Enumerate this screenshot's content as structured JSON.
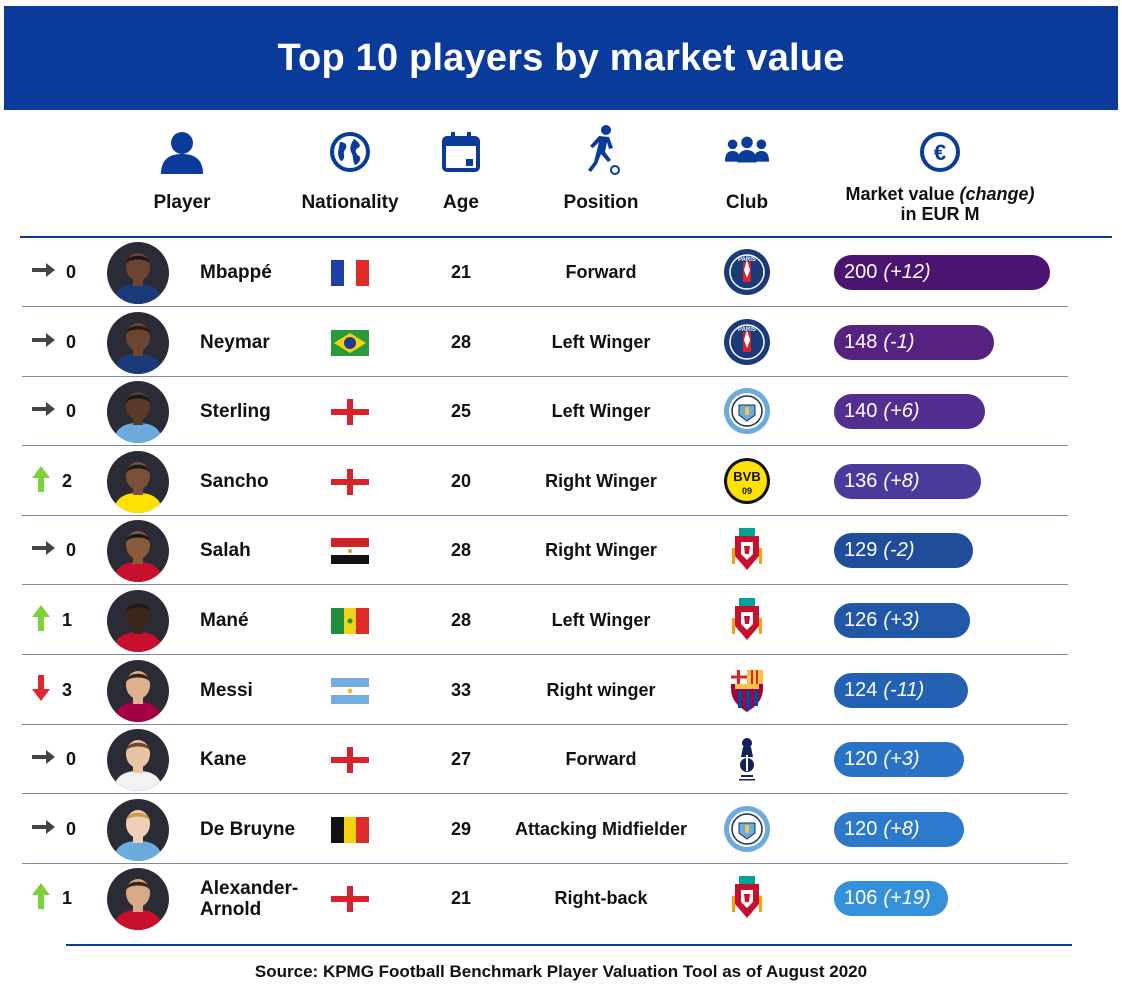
{
  "title": "Top 10 players by market value",
  "columns": {
    "player": "Player",
    "nationality": "Nationality",
    "age": "Age",
    "position": "Position",
    "club": "Club",
    "market_value_line1": "Market value",
    "market_value_change": "(change)",
    "market_value_line2": "in EUR M"
  },
  "icons": {
    "player": "person-icon",
    "nationality": "globe-icon",
    "age": "calendar-icon",
    "position": "running-player-icon",
    "club": "group-icon",
    "market_value": "euro-icon"
  },
  "rows": [
    {
      "trend": "same",
      "change": "0",
      "player": "Mbappé",
      "flag": "france",
      "age": "21",
      "position": "Forward",
      "club": "psg",
      "value": "200",
      "value_change": "(+12)",
      "bar_color": "#4a1470",
      "value_num": 200
    },
    {
      "trend": "same",
      "change": "0",
      "player": "Neymar",
      "flag": "brazil",
      "age": "28",
      "position": "Left Winger",
      "club": "psg",
      "value": "148",
      "value_change": "(-1)",
      "bar_color": "#55237f",
      "value_num": 148
    },
    {
      "trend": "same",
      "change": "0",
      "player": "Sterling",
      "flag": "england",
      "age": "25",
      "position": "Left Winger",
      "club": "man-city",
      "value": "140",
      "value_change": "(+6)",
      "bar_color": "#512e8f",
      "value_num": 140
    },
    {
      "trend": "up",
      "change": "2",
      "player": "Sancho",
      "flag": "england",
      "age": "20",
      "position": "Right Winger",
      "club": "bvb",
      "value": "136",
      "value_change": "(+8)",
      "bar_color": "#4a3a9c",
      "value_num": 136
    },
    {
      "trend": "same",
      "change": "0",
      "player": "Salah",
      "flag": "egypt",
      "age": "28",
      "position": "Right Winger",
      "club": "liverpool",
      "value": "129",
      "value_change": "(-2)",
      "bar_color": "#1f4d9a",
      "value_num": 129
    },
    {
      "trend": "up",
      "change": "1",
      "player": "Mané",
      "flag": "senegal",
      "age": "28",
      "position": "Left Winger",
      "club": "liverpool",
      "value": "126",
      "value_change": "(+3)",
      "bar_color": "#2256a6",
      "value_num": 126
    },
    {
      "trend": "down",
      "change": "3",
      "player": "Messi",
      "flag": "argentina",
      "age": "33",
      "position": "Right winger",
      "club": "barcelona",
      "value": "124",
      "value_change": "(-11)",
      "bar_color": "#2361b2",
      "value_num": 124
    },
    {
      "trend": "same",
      "change": "0",
      "player": "Kane",
      "flag": "england",
      "age": "27",
      "position": "Forward",
      "club": "tottenham",
      "value": "120",
      "value_change": "(+3)",
      "bar_color": "#2a72c6",
      "value_num": 120
    },
    {
      "trend": "same",
      "change": "0",
      "player": "De Bruyne",
      "flag": "belgium",
      "age": "29",
      "position": "Attacking Midfielder",
      "club": "man-city",
      "value": "120",
      "value_change": "(+8)",
      "bar_color": "#2c79cc",
      "value_num": 120
    },
    {
      "trend": "up",
      "change": "1",
      "player": "Alexander-\nArnold",
      "flag": "england",
      "age": "21",
      "position": "Right-back",
      "club": "liverpool",
      "value": "106",
      "value_change": "(+19)",
      "bar_color": "#3490d8",
      "value_num": 106
    }
  ],
  "source": "Source: KPMG Football Benchmark Player Valuation Tool as of August 2020"
}
